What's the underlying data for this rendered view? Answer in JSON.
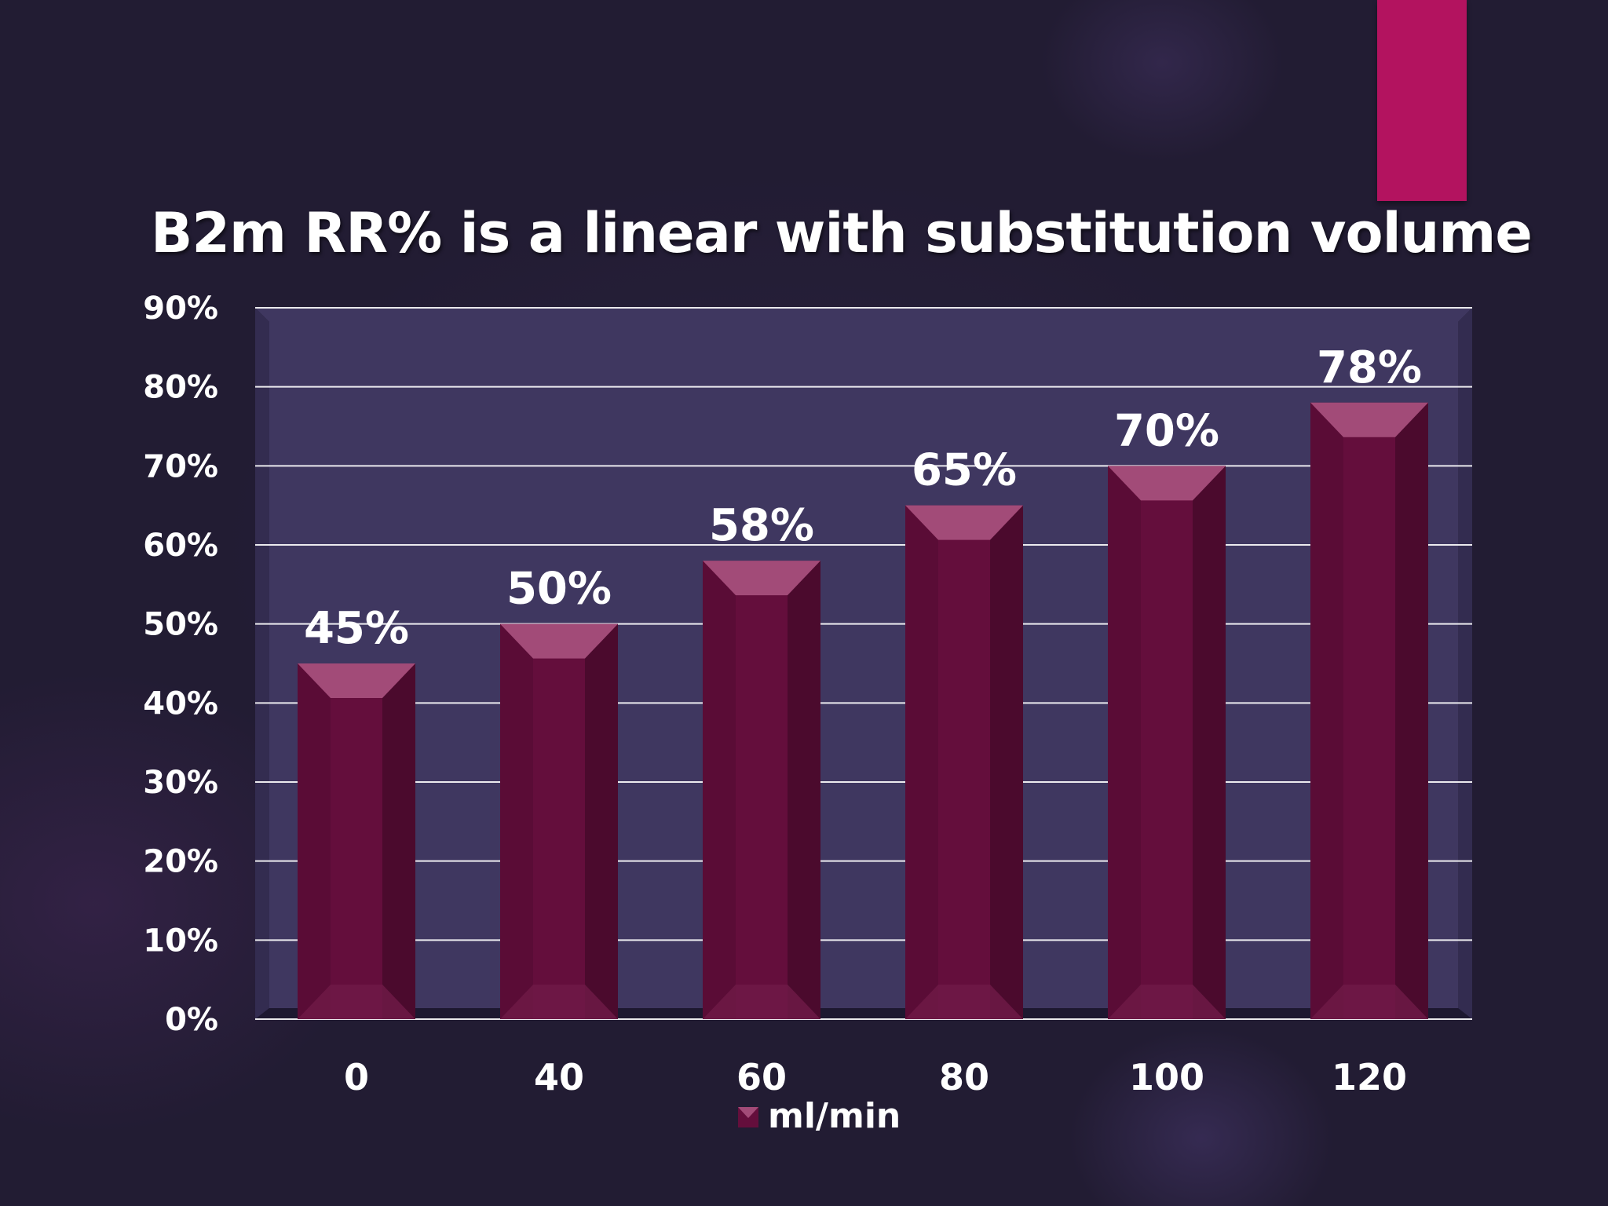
{
  "colors": {
    "accent": "#b3135f",
    "bar_front": "#640e3c",
    "bar_side": "#4b0a2d",
    "bar_top": "#a24b78",
    "plot_back": "#3f3760",
    "gridline": "#ffffff"
  },
  "chart_data": {
    "type": "bar",
    "title": "B2m RR% is a linear with substitution volume",
    "categories": [
      "0",
      "40",
      "60",
      "80",
      "100",
      "120"
    ],
    "series": [
      {
        "name": "ml/min",
        "values": [
          45,
          50,
          58,
          65,
          70,
          78
        ]
      }
    ],
    "data_labels": [
      "45%",
      "50%",
      "58%",
      "65%",
      "70%",
      "78%"
    ],
    "y_ticks": [
      "0%",
      "10%",
      "20%",
      "30%",
      "40%",
      "50%",
      "60%",
      "70%",
      "80%",
      "90%"
    ],
    "ylim": [
      0,
      90
    ],
    "grid": true,
    "legend": "bottom"
  }
}
